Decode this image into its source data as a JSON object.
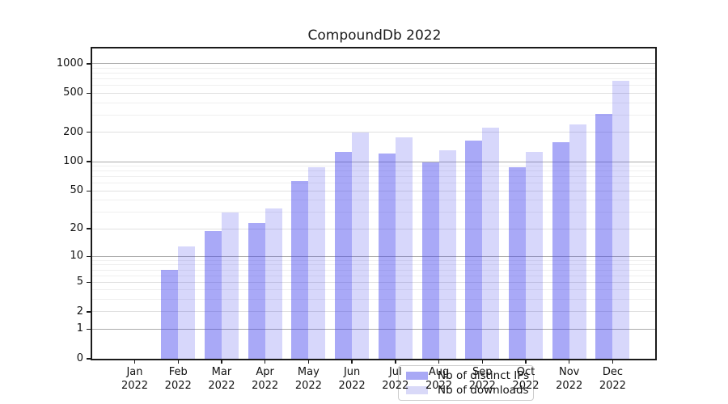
{
  "chart_data": {
    "type": "bar",
    "title": "CompoundDb 2022",
    "categories": [
      "Jan",
      "Feb",
      "Mar",
      "Apr",
      "May",
      "Jun",
      "Jul",
      "Aug",
      "Sep",
      "Oct",
      "Nov",
      "Dec"
    ],
    "x_year": "2022",
    "series": [
      {
        "name": "Nb of distinct IPs",
        "fill": "rgba(68,68,238,0.46)",
        "legend_color": "#a9a9f5",
        "values": [
          0,
          7,
          19,
          23,
          63,
          125,
          122,
          99,
          166,
          87,
          159,
          308
        ]
      },
      {
        "name": "Nb of downloads",
        "fill": "rgba(68,68,238,0.21)",
        "legend_color": "#d9d9f8",
        "values": [
          0,
          13,
          30,
          33,
          87,
          200,
          177,
          131,
          222,
          126,
          239,
          670
        ]
      }
    ],
    "y_scale": "log1p",
    "y_ticks": [
      0,
      1,
      2,
      5,
      10,
      20,
      50,
      100,
      200,
      500,
      1000
    ],
    "y_minor_ticks": [
      3,
      4,
      6,
      7,
      8,
      9,
      30,
      40,
      60,
      70,
      80,
      90,
      300,
      400,
      600,
      700,
      800,
      900
    ],
    "ylim": [
      0,
      1430
    ],
    "grid": true,
    "legend_position": "lower-center",
    "colors": {
      "decade_gridline": "#ababab",
      "major_gridline": "#e0e0e0",
      "minor_gridline": "#efefef",
      "spine": "#1a1a1a",
      "text": "#111111"
    }
  }
}
